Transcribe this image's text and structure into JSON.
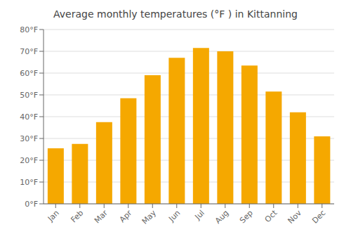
{
  "chart_data": {
    "type": "bar",
    "title": "Average monthly temperatures (°F ) in Kittanning",
    "categories": [
      "Jan",
      "Feb",
      "Mar",
      "Apr",
      "May",
      "Jun",
      "Jul",
      "Aug",
      "Sep",
      "Oct",
      "Nov",
      "Dec"
    ],
    "values": [
      25.5,
      27.5,
      37.5,
      48.5,
      59.0,
      67.0,
      71.5,
      70.0,
      63.5,
      51.5,
      42.0,
      31.0
    ],
    "color": "#F5A800",
    "ylim": [
      0,
      80
    ],
    "yticks": [
      {
        "value": 0,
        "label": "0°F"
      },
      {
        "value": 10,
        "label": "10°F"
      },
      {
        "value": 20,
        "label": "20°F"
      },
      {
        "value": 30,
        "label": "30°F"
      },
      {
        "value": 40,
        "label": "40°F"
      },
      {
        "value": 50,
        "label": "50°F"
      },
      {
        "value": 60,
        "label": "60°F"
      },
      {
        "value": 70,
        "label": "70°F"
      },
      {
        "value": 80,
        "label": "80°F"
      }
    ],
    "grid": true
  }
}
